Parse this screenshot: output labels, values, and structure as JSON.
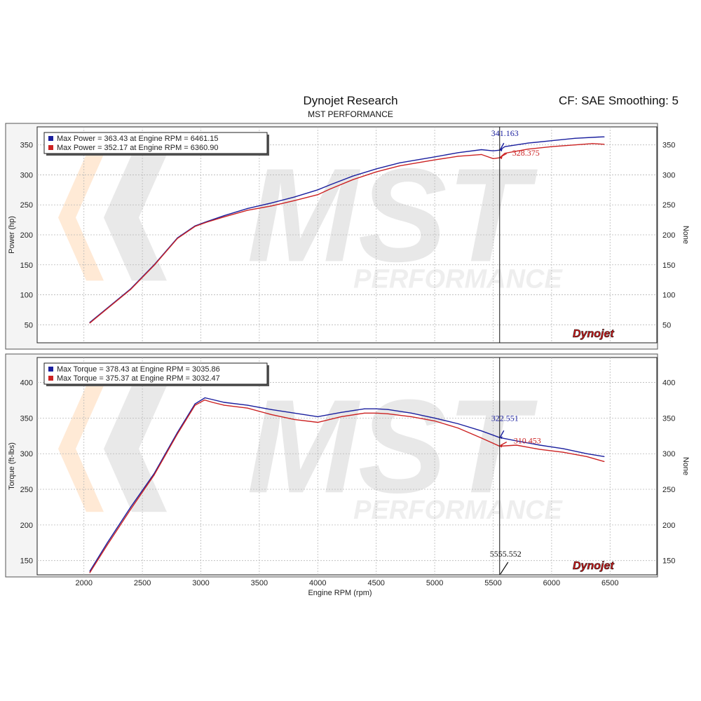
{
  "header": {
    "title": "Dynojet Research",
    "subtitle": "MST PERFORMANCE",
    "correction": "CF: SAE Smoothing: 5"
  },
  "watermark": {
    "text": "MST",
    "subtext": "PERFORMANCE"
  },
  "logo": "Dynojet",
  "colors": {
    "series1": "#1a1f9e",
    "series2": "#cc2222",
    "grid": "#b8b8b8",
    "frame": "#222222",
    "background": "#ffffff"
  },
  "chart_data": [
    {
      "type": "line",
      "xlabel": "",
      "ylabel": "Power (hp)",
      "ylabel_right": "None",
      "xlim": [
        1600,
        6900
      ],
      "ylim": [
        20,
        380
      ],
      "yticks": [
        50,
        100,
        150,
        200,
        250,
        300,
        350
      ],
      "grid": true,
      "legend": "top-left",
      "legend_entries": [
        "Max Power = 363.43 at Engine RPM = 6461.15",
        "Max Power = 352.17 at Engine RPM = 6360.90"
      ],
      "cursor_x": 5555.552,
      "cursor_labels": [
        "341.163",
        "328.375"
      ],
      "series": [
        {
          "x": [
            2050,
            2200,
            2400,
            2600,
            2800,
            2950,
            3050,
            3200,
            3400,
            3600,
            3800,
            4000,
            4100,
            4300,
            4500,
            4700,
            5000,
            5200,
            5400,
            5500,
            5555,
            5600,
            5800,
            6000,
            6200,
            6400,
            6450
          ],
          "values": [
            54,
            78,
            110,
            150,
            195,
            215,
            222,
            232,
            244,
            253,
            263,
            275,
            283,
            298,
            310,
            320,
            330,
            337,
            342,
            340,
            341.2,
            347,
            353,
            357,
            361,
            363,
            363.4
          ]
        },
        {
          "x": [
            2050,
            2200,
            2400,
            2600,
            2800,
            2950,
            3050,
            3200,
            3400,
            3600,
            3800,
            4000,
            4100,
            4300,
            4500,
            4700,
            5000,
            5200,
            5400,
            5500,
            5555,
            5600,
            5800,
            6000,
            6200,
            6350,
            6450
          ],
          "values": [
            53,
            77,
            109,
            149,
            194,
            214,
            221,
            230,
            241,
            248,
            257,
            267,
            276,
            292,
            305,
            315,
            325,
            331,
            334,
            327,
            328.4,
            336,
            343,
            347,
            350,
            352.2,
            351
          ]
        }
      ]
    },
    {
      "type": "line",
      "xlabel": "Engine RPM (rpm)",
      "ylabel": "Torque (ft-lbs)",
      "ylabel_right": "None",
      "xlim": [
        1600,
        6900
      ],
      "ylim": [
        130,
        435
      ],
      "xticks": [
        2000,
        2500,
        3000,
        3500,
        4000,
        4500,
        5000,
        5500,
        6000,
        6500
      ],
      "yticks": [
        150,
        200,
        250,
        300,
        350,
        400
      ],
      "grid": true,
      "legend": "top-left",
      "legend_entries": [
        "Max Torque = 378.43 at Engine RPM = 3035.86",
        "Max Torque = 375.37 at Engine RPM = 3032.47"
      ],
      "cursor_x": 5555.552,
      "cursor_labels": [
        "322.551",
        "310.453",
        "5555.552"
      ],
      "series": [
        {
          "x": [
            2050,
            2200,
            2400,
            2600,
            2800,
            2950,
            3035,
            3100,
            3200,
            3400,
            3600,
            3800,
            4000,
            4200,
            4400,
            4500,
            4600,
            4800,
            5000,
            5200,
            5400,
            5555,
            5700,
            5900,
            6100,
            6300,
            6450
          ],
          "values": [
            135,
            175,
            225,
            272,
            330,
            370,
            378.4,
            376,
            372,
            368,
            362,
            357,
            352,
            358,
            363,
            363,
            362,
            357,
            350,
            342,
            332,
            322.6,
            318,
            312,
            307,
            300,
            296
          ]
        },
        {
          "x": [
            2050,
            2200,
            2400,
            2600,
            2800,
            2950,
            3032,
            3100,
            3200,
            3400,
            3600,
            3800,
            4000,
            4200,
            4400,
            4500,
            4600,
            4800,
            5000,
            5200,
            5400,
            5555,
            5700,
            5900,
            6100,
            6300,
            6450
          ],
          "values": [
            133,
            172,
            222,
            270,
            328,
            368,
            375.4,
            372,
            368,
            364,
            355,
            348,
            344,
            352,
            357,
            357,
            356,
            352,
            346,
            336,
            322,
            310.5,
            312,
            306,
            302,
            296,
            289
          ]
        }
      ]
    }
  ]
}
